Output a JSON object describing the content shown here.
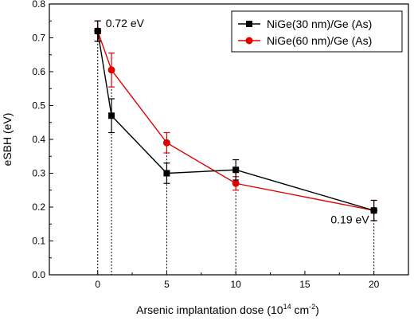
{
  "chart_data": {
    "type": "line",
    "xlabel": "Arsenic implantation dose (10",
    "xlabel_exp_base": "14",
    "xlabel_unit": " cm",
    "xlabel_exp_unit": "-2",
    "xlabel_close": ")",
    "ylabel": "eSBH (eV)",
    "xlim": [
      -3.5,
      22.5
    ],
    "ylim": [
      0,
      0.8
    ],
    "x_ticks": [
      0,
      5,
      10,
      15,
      20
    ],
    "y_ticks": [
      0.0,
      0.1,
      0.2,
      0.3,
      0.4,
      0.5,
      0.6,
      0.7,
      0.8
    ],
    "grid": false,
    "legend_position": "top-right",
    "series": [
      {
        "name": "NiGe(30 nm)/Ge (As)",
        "color": "#000000",
        "marker": "square",
        "x": [
          0,
          1,
          5,
          10,
          20
        ],
        "y": [
          0.72,
          0.47,
          0.3,
          0.31,
          0.19
        ],
        "err": [
          0.03,
          0.05,
          0.03,
          0.03,
          0.03
        ]
      },
      {
        "name": "NiGe(60 nm)/Ge (As)",
        "color": "#e00000",
        "marker": "circle",
        "x": [
          0,
          1,
          5,
          10,
          20
        ],
        "y": [
          0.72,
          0.605,
          0.39,
          0.27,
          0.19
        ],
        "err": [
          0.03,
          0.05,
          0.03,
          0.02,
          0.03
        ]
      }
    ],
    "dotted_drop_lines_x": [
      0,
      1,
      5,
      10,
      20
    ],
    "annotations": [
      {
        "text": "0.72 eV",
        "x": 0,
        "y": 0.72
      },
      {
        "text": "0.19 eV",
        "x": 20,
        "y": 0.19
      }
    ]
  }
}
